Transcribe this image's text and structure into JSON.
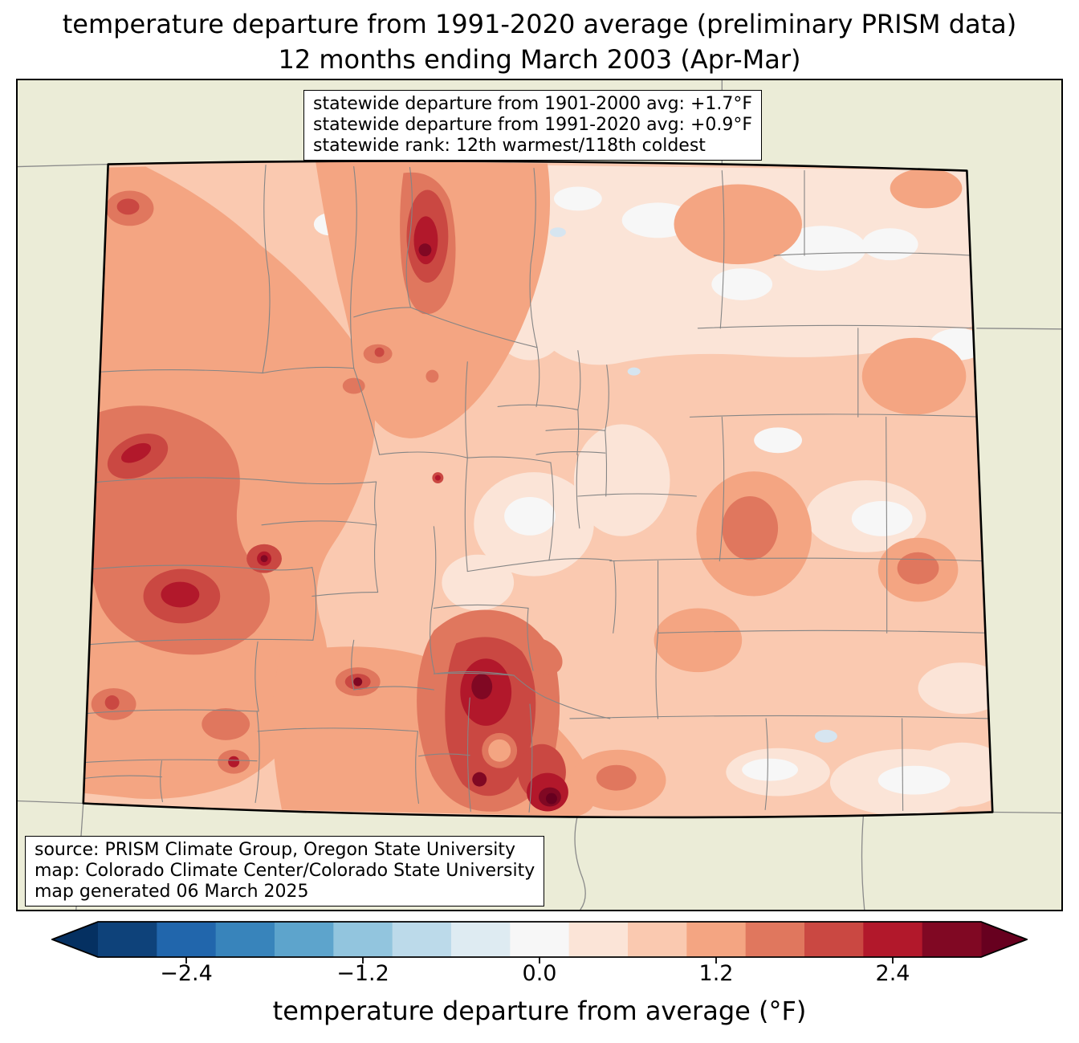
{
  "title": {
    "line1": "temperature departure from 1991-2020 average (preliminary PRISM data)",
    "line2": "12 months ending March 2003 (Apr-Mar)"
  },
  "stats_box": {
    "lines": [
      "statewide departure from 1901-2000 avg: +1.7°F",
      "statewide departure from 1991-2020 avg: +0.9°F",
      "statewide rank: 12th warmest/118th coldest"
    ]
  },
  "source_box": {
    "lines": [
      "source: PRISM Climate Group, Oregon State University",
      "map: Colorado Climate Center/Colorado State University",
      "map generated 06 March 2025"
    ]
  },
  "colorbar": {
    "label": "temperature departure from average (°F)",
    "ticks": [
      "−2.4",
      "−1.2",
      "0.0",
      "1.2",
      "2.4"
    ],
    "range_f": [
      -3.0,
      3.0
    ],
    "segment_colors": [
      "#0e427a",
      "#2166ac",
      "#3884bb",
      "#5da4cc",
      "#92c5de",
      "#bcdaea",
      "#deebf2",
      "#f7f7f7",
      "#fbe4d7",
      "#fac9b0",
      "#f4a582",
      "#e0775e",
      "#ca4842",
      "#b2182b",
      "#800823"
    ],
    "arrow_left_color": "#053061",
    "arrow_right_color": "#67001f"
  },
  "map": {
    "palette": {
      "bg": "#ebecd7",
      "border": "#000000",
      "county": "#858585",
      "neighbor": "#8a8a8a",
      "white": "#f7f7f7",
      "cool": "#d6e5f0",
      "pale": "#fbe4d7",
      "light": "#fac9b0",
      "salmon": "#f4a582",
      "dksalmon": "#e0775e",
      "red": "#ca4842",
      "dkred": "#b2182b",
      "maroon": "#800823",
      "deepmaroon": "#67001f"
    }
  }
}
